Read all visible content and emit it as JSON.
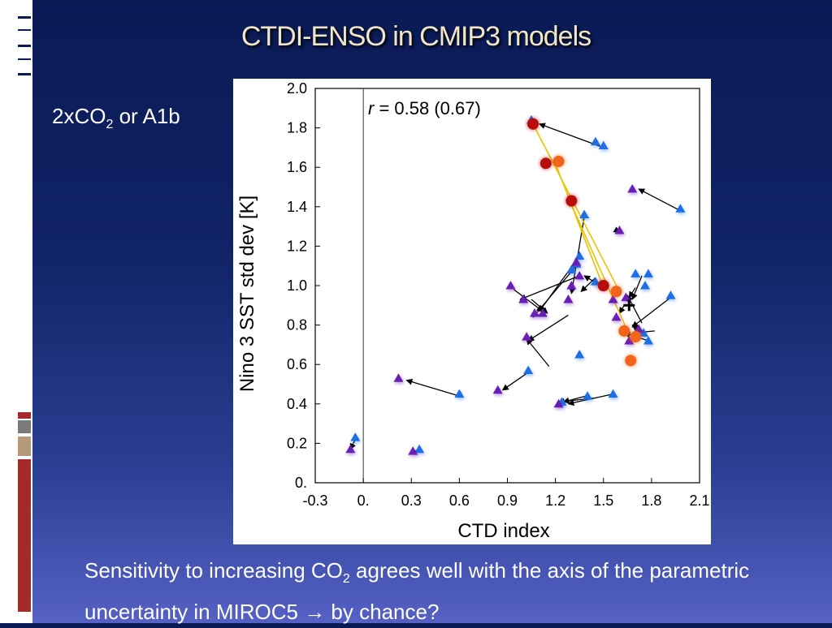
{
  "slide": {
    "title": "CTDI-ENSO in CMIP3 models",
    "scenario_prefix": "2xCO",
    "scenario_sub": "2",
    "scenario_suffix": " or A1b",
    "caption_part1": "Sensitivity to increasing CO",
    "caption_sub": "2",
    "caption_part2": " agrees well with the axis of the parametric uncertainty in MIROC5 → by chance?"
  },
  "colors": {
    "title": "#f2e6c8",
    "triangle_blue": "#1e6fe6",
    "triangle_purple": "#6a1fb4",
    "circle_red": "#b80d0d",
    "circle_orange": "#f26419",
    "arrow_yellow": "#e8c300",
    "deco_red": "#a52a2a",
    "deco_gray": "#7a7a7a",
    "deco_tan": "#b59a7a"
  },
  "chart_data": {
    "type": "scatter",
    "xlabel": "CTD index",
    "ylabel": "Nino 3 SST std dev [K]",
    "annotation": {
      "italic": "r",
      "text": " = 0.58 (0.67)"
    },
    "xlim": [
      -0.3,
      2.1
    ],
    "ylim": [
      0.0,
      2.0
    ],
    "x_ticks": [
      -0.3,
      0.0,
      0.3,
      0.6,
      0.9,
      1.2,
      1.5,
      1.8,
      2.1
    ],
    "x_tick_labels": [
      "-0.3",
      "0.",
      "0.3",
      "0.6",
      "0.9",
      "1.2",
      "1.5",
      "1.8",
      "2.1"
    ],
    "y_ticks": [
      0.0,
      0.2,
      0.4,
      0.6,
      0.8,
      1.0,
      1.2,
      1.4,
      1.6,
      1.8,
      2.0
    ],
    "y_tick_labels": [
      "0.",
      "0.2",
      "0.4",
      "0.6",
      "0.8",
      "1.0",
      "1.2",
      "1.4",
      "1.6",
      "1.8",
      "2.0"
    ],
    "vline_x": 0.0,
    "arrows_black": [
      [
        1.5,
        1.7,
        1.1,
        1.82
      ],
      [
        1.98,
        1.38,
        1.72,
        1.49
      ],
      [
        1.38,
        1.35,
        1.3,
        0.96
      ],
      [
        1.35,
        1.15,
        1.1,
        0.87
      ],
      [
        1.33,
        1.1,
        1.06,
        0.84
      ],
      [
        1.35,
        1.05,
        0.98,
        0.93
      ],
      [
        1.52,
        0.98,
        1.38,
        1.05
      ],
      [
        1.45,
        1.04,
        1.36,
        0.97
      ],
      [
        1.58,
        1.28,
        1.6,
        1.27
      ],
      [
        1.63,
        0.9,
        1.6,
        0.86
      ],
      [
        1.74,
        1.05,
        1.68,
        0.93
      ],
      [
        1.7,
        0.99,
        1.66,
        0.94
      ],
      [
        1.78,
        0.72,
        1.63,
        0.76
      ],
      [
        1.75,
        0.76,
        1.68,
        0.8
      ],
      [
        1.72,
        0.78,
        1.65,
        0.71
      ],
      [
        1.82,
        0.77,
        1.69,
        0.76
      ],
      [
        1.92,
        0.94,
        1.68,
        0.79
      ],
      [
        1.74,
        0.81,
        1.65,
        0.95
      ],
      [
        1.16,
        0.59,
        1.02,
        0.73
      ],
      [
        1.28,
        0.85,
        1.03,
        0.72
      ],
      [
        0.6,
        0.44,
        0.27,
        0.52
      ],
      [
        1.03,
        0.56,
        0.87,
        0.47
      ],
      [
        1.39,
        0.44,
        1.25,
        0.41
      ],
      [
        1.56,
        0.45,
        1.28,
        0.4
      ],
      [
        1.45,
        0.43,
        1.22,
        0.41
      ],
      [
        -0.05,
        0.22,
        -0.08,
        0.17
      ],
      [
        0.35,
        0.17,
        0.29,
        0.15
      ],
      [
        1.05,
        0.93,
        1.15,
        0.86
      ],
      [
        0.94,
        0.98,
        1.12,
        0.87
      ]
    ],
    "arrows_yellow": [
      [
        1.6,
        0.97,
        1.06,
        1.82
      ],
      [
        1.65,
        0.77,
        1.29,
        1.43
      ],
      [
        1.5,
        0.99,
        1.19,
        1.64
      ]
    ],
    "points_blue_triangle": [
      [
        1.05,
        1.84
      ],
      [
        1.45,
        1.73
      ],
      [
        1.5,
        1.71
      ],
      [
        1.98,
        1.39
      ],
      [
        1.38,
        1.36
      ],
      [
        1.35,
        1.15
      ],
      [
        1.33,
        1.11
      ],
      [
        1.7,
        1.06
      ],
      [
        1.78,
        1.06
      ],
      [
        1.76,
        1.0
      ],
      [
        1.45,
        1.02
      ],
      [
        1.3,
        1.08
      ],
      [
        1.92,
        0.95
      ],
      [
        1.78,
        0.72
      ],
      [
        1.75,
        0.76
      ],
      [
        1.35,
        0.65
      ],
      [
        1.03,
        0.57
      ],
      [
        0.6,
        0.45
      ],
      [
        1.4,
        0.44
      ],
      [
        1.56,
        0.45
      ],
      [
        1.24,
        0.41
      ],
      [
        -0.05,
        0.23
      ],
      [
        0.35,
        0.17
      ]
    ],
    "points_purple_triangle": [
      [
        1.68,
        1.49
      ],
      [
        1.6,
        1.28
      ],
      [
        1.33,
        1.12
      ],
      [
        1.3,
        1.0
      ],
      [
        1.35,
        1.05
      ],
      [
        1.56,
        0.93
      ],
      [
        1.64,
        0.94
      ],
      [
        1.28,
        0.93
      ],
      [
        1.0,
        0.93
      ],
      [
        0.92,
        1.0
      ],
      [
        1.12,
        0.86
      ],
      [
        1.07,
        0.86
      ],
      [
        1.58,
        0.84
      ],
      [
        1.72,
        0.78
      ],
      [
        1.66,
        0.72
      ],
      [
        1.02,
        0.74
      ],
      [
        0.22,
        0.53
      ],
      [
        0.84,
        0.47
      ],
      [
        1.22,
        0.4
      ],
      [
        -0.08,
        0.17
      ],
      [
        0.31,
        0.16
      ]
    ],
    "points_red_circle": [
      [
        1.06,
        1.82
      ],
      [
        1.14,
        1.62
      ],
      [
        1.3,
        1.43
      ],
      [
        1.5,
        1.0
      ]
    ],
    "points_orange_circle": [
      [
        1.22,
        1.63
      ],
      [
        1.58,
        0.97
      ],
      [
        1.63,
        0.77
      ],
      [
        1.67,
        0.62
      ],
      [
        1.7,
        0.74
      ]
    ],
    "plus_marker": [
      1.66,
      0.9
    ]
  }
}
